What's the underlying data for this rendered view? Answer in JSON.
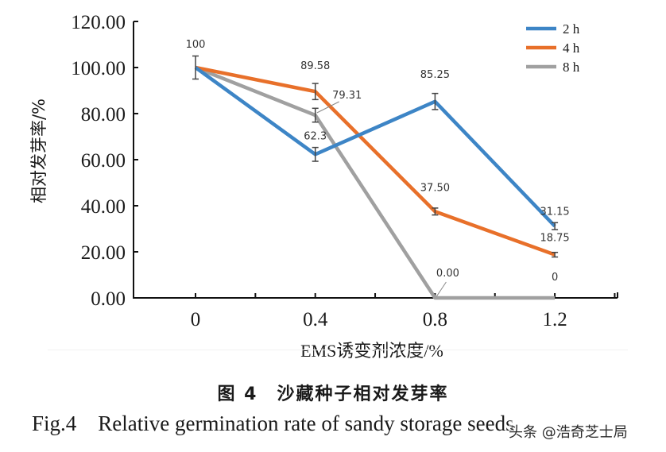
{
  "chart_data": {
    "type": "line",
    "title": "",
    "xlabel": "EMS诱变剂浓度/%",
    "ylabel": "相对发芽率/%",
    "categories": [
      "0",
      "0.4",
      "0.8",
      "1.2"
    ],
    "x": [
      0,
      0.4,
      0.8,
      1.2
    ],
    "ylim": [
      0,
      120
    ],
    "yticks": [
      "0.00",
      "20.00",
      "40.00",
      "60.00",
      "80.00",
      "100.00",
      "120.00"
    ],
    "ytick_values": [
      0,
      20,
      40,
      60,
      80,
      100,
      120
    ],
    "grid": false,
    "legend_position": "top-right",
    "series": [
      {
        "name": "2 h",
        "color": "#3d85c6",
        "values": [
          100,
          62.3,
          85.25,
          31.15
        ],
        "errors": [
          5,
          3,
          3.5,
          1.5
        ],
        "labels": [
          "100",
          "62.3",
          "85.25",
          "31.15"
        ]
      },
      {
        "name": "4 h",
        "color": "#e8702a",
        "values": [
          100,
          89.58,
          37.5,
          18.75
        ],
        "errors": [
          0,
          3.5,
          1.5,
          1
        ],
        "labels": [
          "",
          "89.58",
          "37.50",
          "18.75"
        ]
      },
      {
        "name": "8 h",
        "color": "#a0a0a0",
        "values": [
          100,
          79.31,
          0,
          0
        ],
        "errors": [
          0,
          3,
          0,
          0
        ],
        "labels": [
          "",
          "79.31",
          "0.00",
          "0"
        ]
      }
    ]
  },
  "caption": {
    "chinese": "图 4　沙藏种子相对发芽率",
    "english": "Fig.4    Relative germination rate of sandy storage seeds"
  },
  "watermark": "头条 @浩奇芝士局"
}
